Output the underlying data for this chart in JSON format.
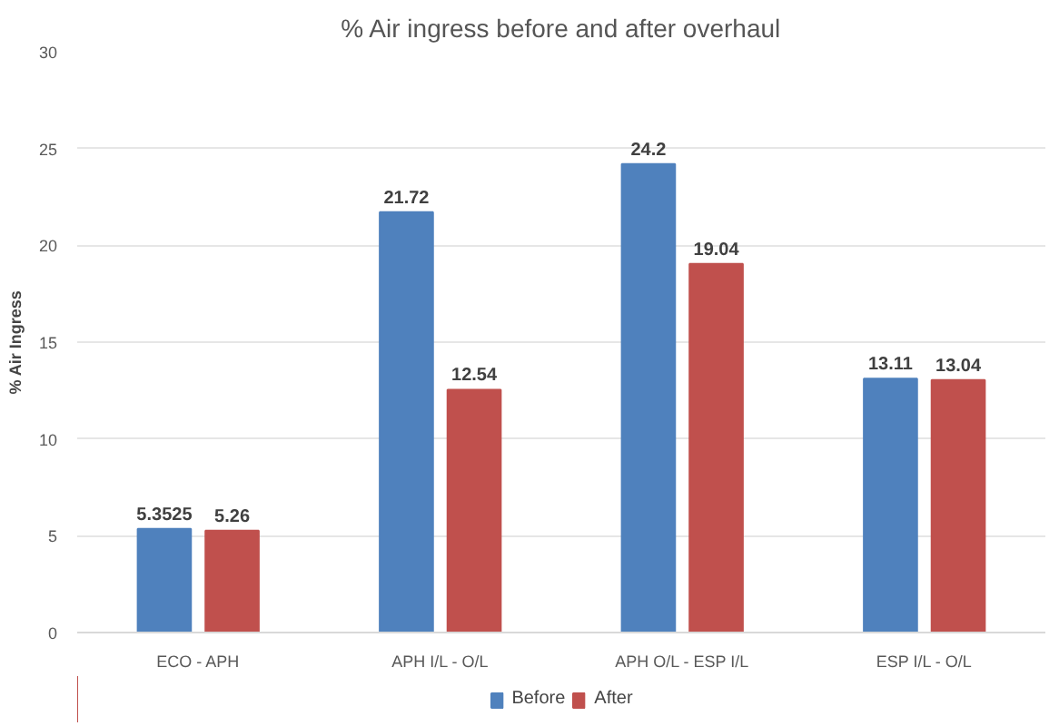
{
  "chart_data": {
    "type": "bar",
    "title": "% Air ingress before and after overhaul",
    "ylabel": "% Air Ingress",
    "categories": [
      "ECO - APH",
      "APH I/L - O/L",
      "APH O/L - ESP I/L",
      "ESP I/L - O/L"
    ],
    "series": [
      {
        "name": "Before",
        "color": "#4f81bd",
        "values": [
          5.3525,
          21.72,
          24.2,
          13.11
        ]
      },
      {
        "name": "After",
        "color": "#c0504d",
        "values": [
          5.26,
          12.54,
          19.04,
          13.04
        ]
      }
    ],
    "ylim": [
      0,
      30
    ],
    "yticks": [
      0,
      5,
      10,
      15,
      20,
      25,
      30
    ],
    "grid": "y",
    "legend": "bottom",
    "data_labels": true
  }
}
